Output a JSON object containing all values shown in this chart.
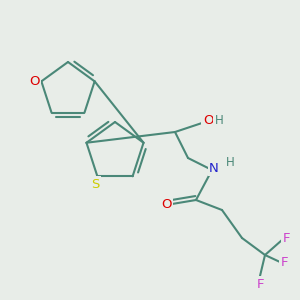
{
  "background_color": "#e8ede8",
  "bond_color": "#4a8878",
  "bond_width": 1.5,
  "figsize": [
    3.0,
    3.0
  ],
  "dpi": 100,
  "atom_colors": {
    "O": "#dd0000",
    "S": "#cccc00",
    "N": "#2222cc",
    "F": "#cc44cc",
    "H": "#4a8878",
    "C": "#4a8878"
  },
  "font_size": 9.5
}
